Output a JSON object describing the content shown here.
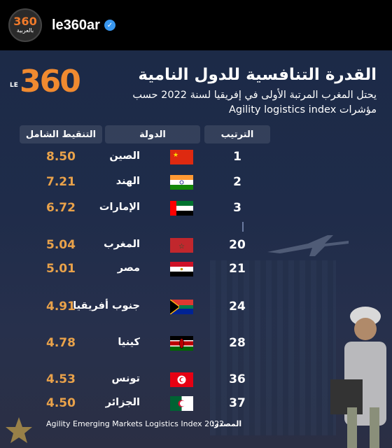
{
  "header": {
    "username": "le360ar",
    "avatar_number": "360",
    "avatar_sub": "بالعربية"
  },
  "logo": {
    "prefix": "LE",
    "number": "360"
  },
  "title": "القدرة التنافسية للدول النامية",
  "subtitle": "يحتل المغرب المرتبة الأولى في إفريقيا لسنة 2022 حسب مؤشرات Agility logistics index",
  "columns": {
    "score": "التنقيط الشامل",
    "country": "الدولة",
    "rank": "الترتيب"
  },
  "rows": [
    {
      "rank": "1",
      "country": "الصين",
      "score": "8.50",
      "flag": "china-flag-icon"
    },
    {
      "rank": "2",
      "country": "الهند",
      "score": "7.21",
      "flag": "india-flag-icon"
    },
    {
      "rank": "3",
      "country": "الإمارات",
      "score": "6.72",
      "flag": "uae-flag-icon"
    },
    {
      "rank": "20",
      "country": "المغرب",
      "score": "5.04",
      "flag": "morocco-flag-icon"
    },
    {
      "rank": "21",
      "country": "مصر",
      "score": "5.01",
      "flag": "egypt-flag-icon"
    },
    {
      "rank": "24",
      "country": "جنوب أفريقيا",
      "score": "4.91",
      "flag": "south-africa-flag-icon"
    },
    {
      "rank": "28",
      "country": "كينيا",
      "score": "4.78",
      "flag": "kenya-flag-icon"
    },
    {
      "rank": "36",
      "country": "تونس",
      "score": "4.53",
      "flag": "tunisia-flag-icon"
    },
    {
      "rank": "37",
      "country": "الجزائر",
      "score": "4.50",
      "flag": "algeria-flag-icon"
    }
  ],
  "source": {
    "label": "المصدر:",
    "text": "Agility Emerging Markets Logistics Index 2022"
  },
  "colors": {
    "accent": "#f08a30",
    "score": "#e9a24a",
    "background": "#1f2c4a"
  }
}
